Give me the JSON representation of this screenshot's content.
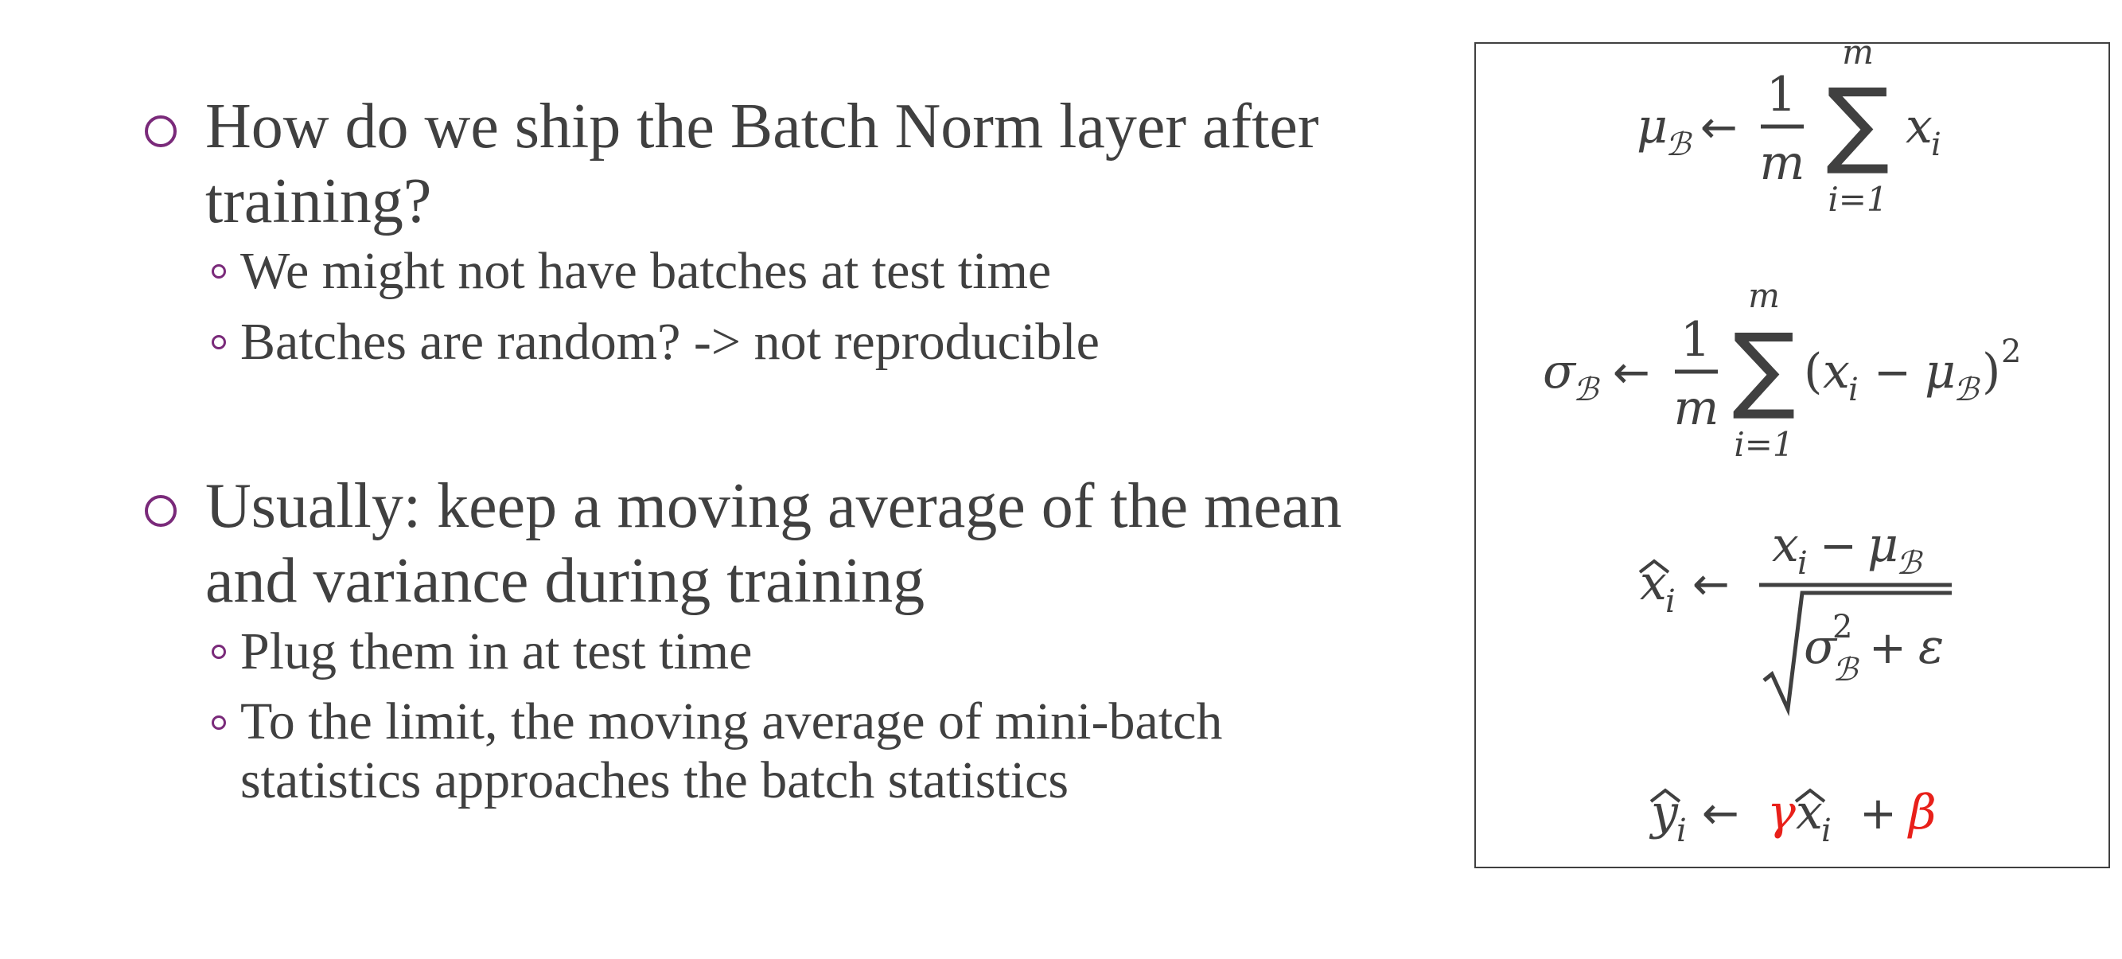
{
  "bullets": [
    {
      "lines": [
        "How do we ship the Batch Norm layer after",
        "training?"
      ],
      "sub": [
        {
          "lines": [
            "We might not have batches at test time"
          ]
        },
        {
          "lines": [
            "Batches are random? -> not reproducible"
          ]
        }
      ]
    },
    {
      "lines": [
        "Usually: keep a moving average of the mean",
        "and variance during training"
      ],
      "sub": [
        {
          "lines": [
            "Plug them in at test time"
          ]
        },
        {
          "lines": [
            "To the limit, the moving average of mini-batch",
            "statistics approaches the batch statistics"
          ]
        }
      ]
    }
  ],
  "formulas": {
    "mean": {
      "lhs": "μ",
      "lhs_sub": "ℬ",
      "arrow": "←",
      "num": "1",
      "den": "m",
      "sum": "∑",
      "sum_top": "m",
      "sum_bottom": "i=1",
      "term": "x",
      "term_sub": "i"
    },
    "variance": {
      "lhs": "σ",
      "lhs_sub": "ℬ",
      "arrow": "←",
      "num": "1",
      "den": "m",
      "sum": "∑",
      "sum_top": "m",
      "sum_bottom": "i=1",
      "open": "(",
      "x": "x",
      "x_sub": "i",
      "minus": "−",
      "mu": "μ",
      "mu_sub": "ℬ",
      "close": ")",
      "power": "2"
    },
    "normalize": {
      "lhs": "x",
      "lhs_sub": "i",
      "arrow": "←",
      "num_x": "x",
      "num_x_sub": "i",
      "minus": "−",
      "num_mu": "μ",
      "num_mu_sub": "ℬ",
      "den_sigma": "σ",
      "den_sigma_sup": "2",
      "den_sigma_sub": "ℬ",
      "plus": "+",
      "epsilon": "ε"
    },
    "scale_shift": {
      "lhs": "y",
      "lhs_sub": "i",
      "arrow": "←",
      "gamma": "γ",
      "x": "x",
      "x_sub": "i",
      "plus": "+",
      "beta": "β",
      "param_color": "#e8201a"
    }
  }
}
